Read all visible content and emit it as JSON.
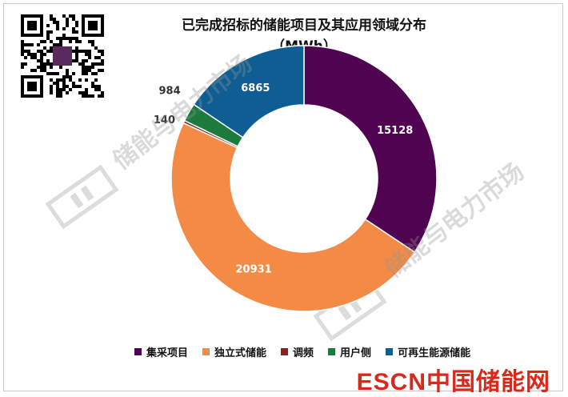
{
  "title_line1": "已完成招标的储能项目及其应用领域分布",
  "title_line2": "（MWh）",
  "watermark_text": "储能与电力市场",
  "brand": {
    "part1": "ESCN",
    "part2": "中国储能网"
  },
  "colors": {
    "collect": "#4f0350",
    "independent": "#f38b46",
    "freq": "#8c1f1f",
    "user": "#1c7a3c",
    "renewable": "#0e5e93"
  },
  "chart_data": {
    "type": "pie",
    "variant": "donut",
    "title": "已完成招标的储能项目及其应用领域分布（MWh）",
    "categories": [
      "集采项目",
      "独立式储能",
      "调频",
      "用户侧",
      "可再生能源储能"
    ],
    "values": [
      15128,
      20931,
      140,
      984,
      6865
    ],
    "data_labels": [
      "15128",
      "20931",
      "140",
      "984",
      "6865"
    ],
    "legend_position": "bottom",
    "start_angle_deg": 0,
    "direction": "clockwise"
  }
}
